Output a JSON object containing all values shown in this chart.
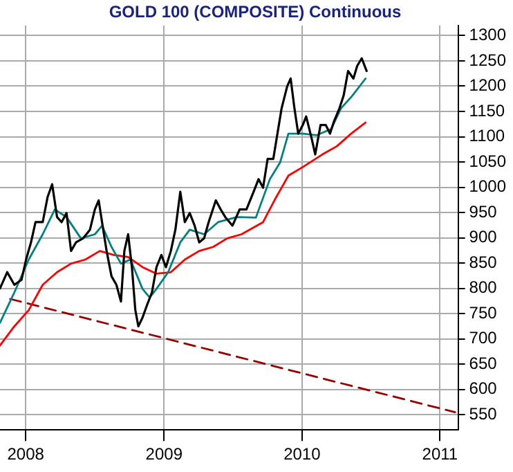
{
  "chart_data": {
    "type": "line",
    "title": "GOLD 100 (COMPOSITE) Continuous",
    "xlim": [
      "2007-10-25",
      "2011-02-18"
    ],
    "xticks": [
      {
        "value": "2008-01-01",
        "label": "2008"
      },
      {
        "value": "2009-01-01",
        "label": "2009"
      },
      {
        "value": "2010-01-01",
        "label": "2010"
      },
      {
        "value": "2011-01-01",
        "label": "2011"
      }
    ],
    "ylim": [
      520,
      1320
    ],
    "yticks": [
      550,
      600,
      650,
      700,
      750,
      800,
      850,
      900,
      950,
      1000,
      1050,
      1100,
      1150,
      1200,
      1250,
      1300
    ],
    "grid": true,
    "legend": false,
    "marker": "none",
    "series": [
      {
        "color": "#000000",
        "x": [
          "2007-10-25",
          "2007-11-13",
          "2007-12-02",
          "2007-12-21",
          "2008-01-02",
          "2008-01-15",
          "2008-01-27",
          "2008-02-15",
          "2008-02-28",
          "2008-03-11",
          "2008-03-24",
          "2008-04-05",
          "2008-04-18",
          "2008-04-30",
          "2008-05-13",
          "2008-06-01",
          "2008-06-19",
          "2008-07-02",
          "2008-07-12",
          "2008-07-21",
          "2008-08-02",
          "2008-08-15",
          "2008-08-28",
          "2008-09-09",
          "2008-09-18",
          "2008-09-28",
          "2008-10-08",
          "2008-10-17",
          "2008-10-25",
          "2008-11-05",
          "2008-11-17",
          "2008-11-30",
          "2008-12-12",
          "2008-12-25",
          "2009-01-06",
          "2009-01-19",
          "2009-01-31",
          "2009-02-13",
          "2009-02-25",
          "2009-03-10",
          "2009-03-23",
          "2009-04-04",
          "2009-04-17",
          "2009-04-29",
          "2009-05-18",
          "2009-05-31",
          "2009-06-12",
          "2009-07-01",
          "2009-07-20",
          "2009-08-07",
          "2009-08-26",
          "2009-09-08",
          "2009-09-20",
          "2009-10-02",
          "2009-10-17",
          "2009-10-28",
          "2009-11-08",
          "2009-11-23",
          "2009-12-02",
          "2009-12-12",
          "2009-12-22",
          "2010-01-03",
          "2010-01-12",
          "2010-01-26",
          "2010-02-05",
          "2010-02-19",
          "2010-03-05",
          "2010-03-16",
          "2010-03-27",
          "2010-04-10",
          "2010-04-21",
          "2010-05-03",
          "2010-05-17",
          "2010-05-27",
          "2010-06-08",
          "2010-06-21"
        ],
        "values": [
          800,
          832,
          807,
          817,
          857,
          891,
          931,
          931,
          981,
          1006,
          941,
          931,
          949,
          874,
          891,
          899,
          916,
          956,
          974,
          931,
          874,
          824,
          807,
          774,
          874,
          907,
          842,
          757,
          725,
          742,
          767,
          792,
          842,
          866,
          842,
          874,
          916,
          991,
          931,
          949,
          924,
          891,
          899,
          931,
          974,
          956,
          941,
          924,
          956,
          956,
          991,
          1016,
          999,
          1056,
          1056,
          1106,
          1156,
          1200,
          1215,
          1156,
          1106,
          1123,
          1140,
          1098,
          1065,
          1123,
          1123,
          1106,
          1131,
          1156,
          1181,
          1230,
          1215,
          1240,
          1255,
          1230
        ]
      },
      {
        "color": "#008080",
        "x": [
          "2007-10-25",
          "2007-12-02",
          "2008-01-09",
          "2008-02-15",
          "2008-03-18",
          "2008-04-18",
          "2008-05-26",
          "2008-07-02",
          "2008-07-21",
          "2008-08-15",
          "2008-09-09",
          "2008-10-04",
          "2008-11-05",
          "2008-11-24",
          "2008-12-12",
          "2009-01-12",
          "2009-02-13",
          "2009-03-10",
          "2009-04-17",
          "2009-05-24",
          "2009-07-13",
          "2009-09-01",
          "2009-10-08",
          "2009-11-04",
          "2009-11-26",
          "2010-01-03",
          "2010-02-09",
          "2010-03-19",
          "2010-04-14",
          "2010-05-14",
          "2010-06-18"
        ],
        "values": [
          732,
          792,
          857,
          907,
          956,
          941,
          899,
          907,
          924,
          882,
          849,
          857,
          799,
          782,
          799,
          832,
          891,
          916,
          907,
          931,
          941,
          940,
          1016,
          1049,
          1106,
          1106,
          1103,
          1115,
          1156,
          1181,
          1215
        ]
      },
      {
        "color": "#ff0000",
        "x": [
          "2007-10-25",
          "2007-12-02",
          "2008-01-09",
          "2008-02-15",
          "2008-03-24",
          "2008-04-30",
          "2008-06-07",
          "2008-07-15",
          "2008-08-21",
          "2008-09-28",
          "2008-11-05",
          "2008-12-12",
          "2009-01-19",
          "2009-02-25",
          "2009-04-04",
          "2009-05-11",
          "2009-06-17",
          "2009-07-25",
          "2009-09-20",
          "2009-10-20",
          "2009-11-26",
          "2010-01-03",
          "2010-02-24",
          "2010-04-03",
          "2010-05-11",
          "2010-06-18"
        ],
        "values": [
          687,
          725,
          757,
          807,
          832,
          849,
          857,
          874,
          866,
          862,
          842,
          829,
          832,
          857,
          874,
          882,
          899,
          907,
          931,
          974,
          1023,
          1040,
          1065,
          1081,
          1106,
          1128
        ]
      },
      {
        "color": "#990000",
        "line_style": "dashed",
        "x": [
          "2007-11-21",
          "2011-02-10"
        ],
        "values": [
          779,
          555
        ]
      }
    ]
  }
}
